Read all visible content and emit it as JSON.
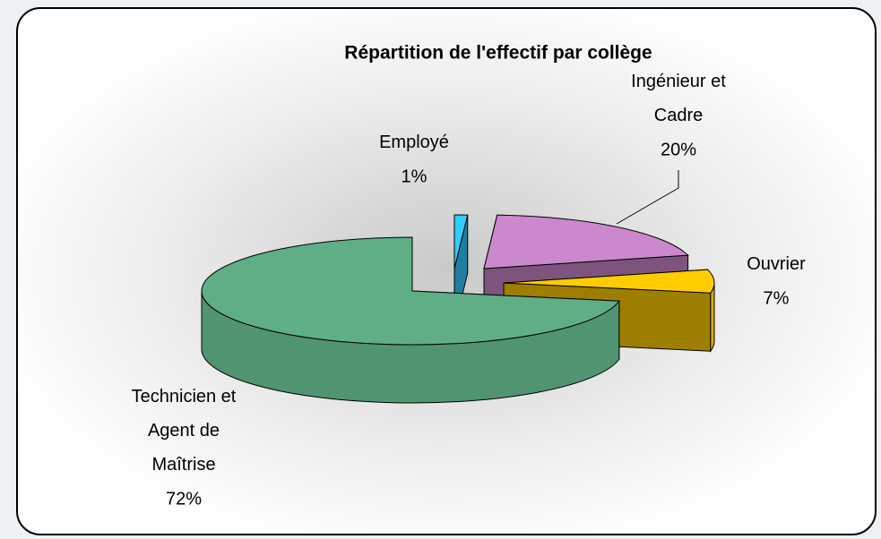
{
  "chart_data": {
    "type": "pie3d",
    "title": "Répartition de l'effectif par collège",
    "categories": [
      "Employé",
      "Ingénieur et Cadre",
      "Ouvrier",
      "Technicien et Agent de Maîtrise"
    ],
    "values": [
      1,
      20,
      7,
      72
    ],
    "value_labels": [
      "1%",
      "20%",
      "7%",
      "72%"
    ],
    "colors": [
      "#33ccff",
      "#cc88cc",
      "#ffcc00",
      "#5fae86"
    ]
  }
}
